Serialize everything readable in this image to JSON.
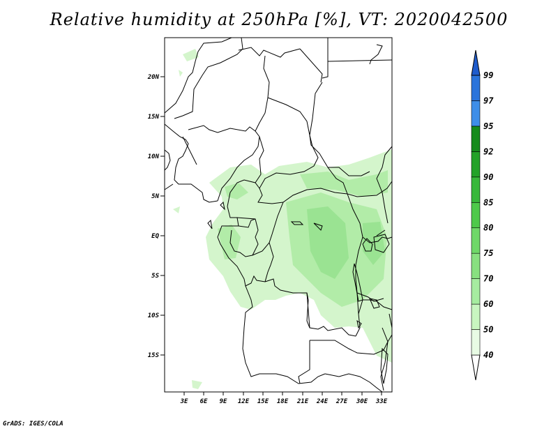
{
  "title": "Relative humidity at 250hPa [%], VT: 2020042500",
  "credit": "GrADS: IGES/COLA",
  "lat_labels": [
    "20N",
    "15N",
    "10N",
    "5N",
    "EQ",
    "5S",
    "10S",
    "15S"
  ],
  "lon_labels": [
    "3E",
    "6E",
    "9E",
    "12E",
    "15E",
    "18E",
    "21E",
    "24E",
    "27E",
    "30E",
    "33E"
  ],
  "colorbar": {
    "levels": [
      "40",
      "50",
      "60",
      "70",
      "75",
      "80",
      "85",
      "90",
      "92",
      "95",
      "97",
      "99"
    ],
    "colors": [
      "#e8fbe4",
      "#c8f5c0",
      "#a6eca0",
      "#88e080",
      "#6fd868",
      "#4ec94a",
      "#38b83a",
      "#23a228",
      "#158b1c",
      "#3e8ee8",
      "#2a74db",
      "#1f5ccc"
    ],
    "under_color": "#ffffff",
    "over_color": "#1f5ccc"
  }
}
